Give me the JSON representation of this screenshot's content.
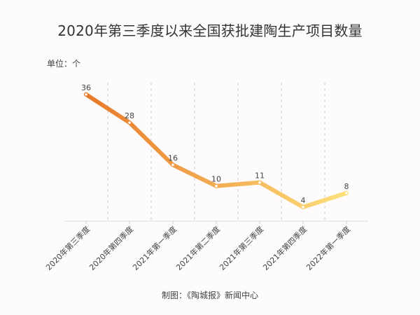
{
  "title": "2020年第三季度以来全国获批建陶生产项目数量",
  "unit_label": "单位：个",
  "footer": "制图：《陶城报》新闻中心",
  "colors": {
    "line_start": "#e8792a",
    "line_end": "#fde07a",
    "axis": "#dddddd",
    "grid": "#cccccc",
    "background": "#fdfbfb"
  },
  "chart_data": {
    "type": "line",
    "title": "2020年第三季度以来全国获批建陶生产项目数量",
    "xlabel": "",
    "ylabel": "单位：个",
    "categories": [
      "2020年第三季度",
      "2020年第四季度",
      "2021年第一季度",
      "2021年第二季度",
      "2021年第三季度",
      "2021年第四季度",
      "2022年第一季度"
    ],
    "values": [
      36,
      28,
      16,
      10,
      11,
      4,
      8
    ],
    "ylim": [
      0,
      36
    ],
    "grid": "vertical dashed separators",
    "legend": null,
    "data_labels": true
  }
}
